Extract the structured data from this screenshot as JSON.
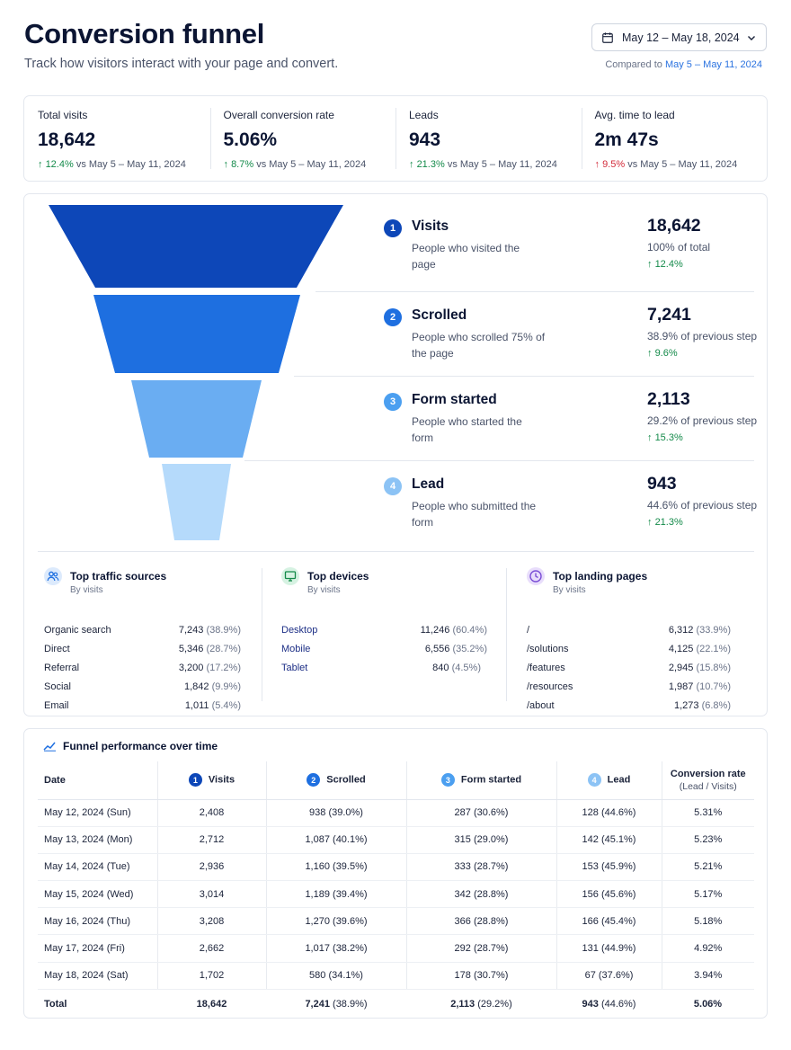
{
  "header": {
    "title": "Conversion funnel",
    "subtitle": "Track how visitors interact with your page and convert.",
    "date_range": "May 12 – May 18, 2024",
    "compared_prefix": "Compared to",
    "compared_range": "May 5 – May 11, 2024"
  },
  "kpis": [
    {
      "label": "Total visits",
      "value": "18,642",
      "delta": "12.4%",
      "direction": "up",
      "compare": "vs May 5 – May 11, 2024"
    },
    {
      "label": "Overall conversion rate",
      "value": "5.06%",
      "delta": "8.7%",
      "direction": "up",
      "compare": "vs May 5 – May 11, 2024"
    },
    {
      "label": "Leads",
      "value": "943",
      "delta": "21.3%",
      "direction": "up",
      "compare": "vs May 5 – May 11, 2024"
    },
    {
      "label": "Avg. time to lead",
      "value": "2m 47s",
      "delta": "9.5%",
      "direction": "down",
      "compare": "vs May 5 – May 11, 2024"
    }
  ],
  "funnel": {
    "colors": [
      "#0d47b8",
      "#1e6fe0",
      "#6aadf2",
      "#b5dafb"
    ],
    "steps": [
      {
        "num": "1",
        "name": "Visits",
        "desc": "People who visited the page",
        "value": "18,642",
        "pct": "100% of total",
        "delta": "12.4%"
      },
      {
        "num": "2",
        "name": "Scrolled",
        "desc": "People who scrolled 75% of the page",
        "value": "7,241",
        "pct": "38.9% of previous step",
        "delta": "9.6%"
      },
      {
        "num": "3",
        "name": "Form started",
        "desc": "People who started the form",
        "value": "2,113",
        "pct": "29.2% of previous step",
        "delta": "15.3%"
      },
      {
        "num": "4",
        "name": "Lead",
        "desc": "People who submitted the form",
        "value": "943",
        "pct": "44.6% of previous step",
        "delta": "21.3%"
      }
    ]
  },
  "breakdowns": [
    {
      "icon": "users-icon",
      "title": "Top traffic sources",
      "sub": "By visits",
      "rows": [
        {
          "name": "Organic search",
          "value": "7,243",
          "pct": "(38.9%)"
        },
        {
          "name": "Direct",
          "value": "5,346",
          "pct": "(28.7%)"
        },
        {
          "name": "Referral",
          "value": "3,200",
          "pct": "(17.2%)"
        },
        {
          "name": "Social",
          "value": "1,842",
          "pct": "(9.9%)"
        },
        {
          "name": "Email",
          "value": "1,011",
          "pct": "(5.4%)"
        }
      ]
    },
    {
      "icon": "monitor-icon",
      "title": "Top devices",
      "sub": "By visits",
      "rows": [
        {
          "name": "Desktop",
          "value": "11,246",
          "pct": "(60.4%)"
        },
        {
          "name": "Mobile",
          "value": "6,556",
          "pct": "(35.2%)"
        },
        {
          "name": "Tablet",
          "value": "840",
          "pct": "(4.5%)"
        }
      ]
    },
    {
      "icon": "clock-icon",
      "title": "Top landing pages",
      "sub": "By visits",
      "rows": [
        {
          "name": "/",
          "value": "6,312",
          "pct": "(33.9%)"
        },
        {
          "name": "/solutions",
          "value": "4,125",
          "pct": "(22.1%)"
        },
        {
          "name": "/features",
          "value": "2,945",
          "pct": "(15.8%)"
        },
        {
          "name": "/resources",
          "value": "1,987",
          "pct": "(10.7%)"
        },
        {
          "name": "/about",
          "value": "1,273",
          "pct": "(6.8%)"
        }
      ]
    }
  ],
  "performance": {
    "title": "Funnel performance over time",
    "columns": {
      "date": "Date",
      "visits": "Visits",
      "scrolled": "Scrolled",
      "form_started": "Form started",
      "lead": "Lead",
      "conversion": "Conversion rate",
      "conversion_sub": "(Lead / Visits)"
    },
    "rows": [
      {
        "date": "May 12, 2024 (Sun)",
        "visits": "2,408",
        "scrolled": "938",
        "scrolled_pct": "(39.0%)",
        "form": "287",
        "form_pct": "(30.6%)",
        "lead": "128",
        "lead_pct": "(44.6%)",
        "rate": "5.31%"
      },
      {
        "date": "May 13, 2024 (Mon)",
        "visits": "2,712",
        "scrolled": "1,087",
        "scrolled_pct": "(40.1%)",
        "form": "315",
        "form_pct": "(29.0%)",
        "lead": "142",
        "lead_pct": "(45.1%)",
        "rate": "5.23%"
      },
      {
        "date": "May 14, 2024 (Tue)",
        "visits": "2,936",
        "scrolled": "1,160",
        "scrolled_pct": "(39.5%)",
        "form": "333",
        "form_pct": "(28.7%)",
        "lead": "153",
        "lead_pct": "(45.9%)",
        "rate": "5.21%"
      },
      {
        "date": "May 15, 2024 (Wed)",
        "visits": "3,014",
        "scrolled": "1,189",
        "scrolled_pct": "(39.4%)",
        "form": "342",
        "form_pct": "(28.8%)",
        "lead": "156",
        "lead_pct": "(45.6%)",
        "rate": "5.17%"
      },
      {
        "date": "May 16, 2024 (Thu)",
        "visits": "3,208",
        "scrolled": "1,270",
        "scrolled_pct": "(39.6%)",
        "form": "366",
        "form_pct": "(28.8%)",
        "lead": "166",
        "lead_pct": "(45.4%)",
        "rate": "5.18%"
      },
      {
        "date": "May 17, 2024 (Fri)",
        "visits": "2,662",
        "scrolled": "1,017",
        "scrolled_pct": "(38.2%)",
        "form": "292",
        "form_pct": "(28.7%)",
        "lead": "131",
        "lead_pct": "(44.9%)",
        "rate": "4.92%"
      },
      {
        "date": "May 18, 2024 (Sat)",
        "visits": "1,702",
        "scrolled": "580",
        "scrolled_pct": "(34.1%)",
        "form": "178",
        "form_pct": "(30.7%)",
        "lead": "67",
        "lead_pct": "(37.6%)",
        "rate": "3.94%"
      }
    ],
    "total": {
      "date": "Total",
      "visits": "18,642",
      "scrolled": "7,241",
      "scrolled_pct": "(38.9%)",
      "form": "2,113",
      "form_pct": "(29.2%)",
      "lead": "943",
      "lead_pct": "(44.6%)",
      "rate": "5.06%"
    }
  }
}
